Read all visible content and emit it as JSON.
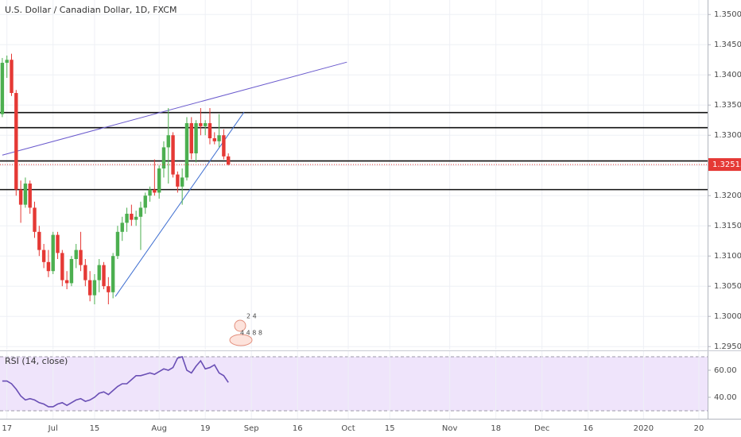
{
  "chart_data": [
    {
      "type": "candlestick",
      "title": "U.S. Dollar / Canadian Dollar, 1D, FXCM",
      "up_color": "#4caf50",
      "down_color": "#e53935",
      "open": [
        1.3335,
        1.342,
        1.3425,
        1.337,
        1.321,
        1.3185,
        1.322,
        1.318,
        1.314,
        1.311,
        1.309,
        1.3075,
        1.3135,
        1.3105,
        1.306,
        1.3055,
        1.3095,
        1.311,
        1.3085,
        1.306,
        1.3035,
        1.306,
        1.3085,
        1.305,
        1.304,
        1.31,
        1.314,
        1.3155,
        1.317,
        1.316,
        1.3165,
        1.318,
        1.32,
        1.321,
        1.3205,
        1.3245,
        1.328,
        1.33,
        1.3235,
        1.3215,
        1.323,
        1.332,
        1.327,
        1.332,
        1.3315,
        1.332,
        1.3295,
        1.329,
        1.33,
        1.3265
      ],
      "high": [
        1.3428,
        1.3432,
        1.3435,
        1.3375,
        1.3225,
        1.323,
        1.3225,
        1.319,
        1.315,
        1.312,
        1.311,
        1.314,
        1.314,
        1.311,
        1.3075,
        1.31,
        1.312,
        1.314,
        1.3095,
        1.3075,
        1.307,
        1.3095,
        1.309,
        1.3065,
        1.3105,
        1.315,
        1.3165,
        1.318,
        1.3185,
        1.3175,
        1.319,
        1.3205,
        1.3215,
        1.326,
        1.325,
        1.329,
        1.3345,
        1.3305,
        1.324,
        1.3245,
        1.333,
        1.333,
        1.3325,
        1.3345,
        1.3325,
        1.3345,
        1.3305,
        1.3335,
        1.331,
        1.327
      ],
      "low": [
        1.333,
        1.3395,
        1.3365,
        1.32,
        1.3155,
        1.318,
        1.317,
        1.313,
        1.31,
        1.308,
        1.3065,
        1.307,
        1.3095,
        1.305,
        1.3045,
        1.305,
        1.308,
        1.3075,
        1.305,
        1.3025,
        1.302,
        1.304,
        1.3045,
        1.302,
        1.303,
        1.3095,
        1.3125,
        1.314,
        1.315,
        1.315,
        1.311,
        1.317,
        1.319,
        1.32,
        1.3195,
        1.323,
        1.322,
        1.323,
        1.3205,
        1.3185,
        1.3225,
        1.326,
        1.3255,
        1.33,
        1.33,
        1.3285,
        1.3285,
        1.328,
        1.326,
        1.325
      ],
      "close": [
        1.342,
        1.3425,
        1.337,
        1.321,
        1.3185,
        1.322,
        1.318,
        1.314,
        1.311,
        1.309,
        1.3075,
        1.3135,
        1.3105,
        1.306,
        1.3055,
        1.3095,
        1.311,
        1.3085,
        1.306,
        1.3035,
        1.306,
        1.3085,
        1.305,
        1.304,
        1.31,
        1.314,
        1.3155,
        1.317,
        1.316,
        1.3165,
        1.318,
        1.32,
        1.321,
        1.3205,
        1.3245,
        1.328,
        1.33,
        1.3235,
        1.3215,
        1.323,
        1.332,
        1.327,
        1.332,
        1.3315,
        1.332,
        1.3295,
        1.329,
        1.33,
        1.3265,
        1.32515
      ],
      "last_price": 1.32515,
      "last_color": "#e53935",
      "levels": [
        1.33375,
        1.33125,
        1.32575,
        1.321
      ],
      "level_color": "#111111",
      "trendlines": [
        {
          "x": [
            0,
            74.7
          ],
          "y": [
            1.32671,
            1.34211
          ],
          "color": "#6a5acd"
        },
        {
          "x": [
            24.5,
            52.4
          ],
          "y": [
            1.30329,
            1.33382
          ],
          "color": "#3f6fd1"
        }
      ],
      "ylim": [
        1.2945,
        1.3524
      ],
      "yticks": [
        {
          "value": 1.35,
          "label": "1.35000"
        },
        {
          "value": 1.345,
          "label": "1.34500"
        },
        {
          "value": 1.34,
          "label": "1.34000"
        },
        {
          "value": 1.335,
          "label": "1.33500"
        },
        {
          "value": 1.33,
          "label": "1.33000"
        },
        {
          "value": 1.325,
          "label": "1.32500"
        },
        {
          "value": 1.32,
          "label": "1.32000"
        },
        {
          "value": 1.315,
          "label": "1.31500"
        },
        {
          "value": 1.31,
          "label": "1.31000"
        },
        {
          "value": 1.305,
          "label": "1.30500"
        },
        {
          "value": 1.3,
          "label": "1.30000"
        },
        {
          "value": 1.295,
          "label": "1.29500"
        }
      ],
      "xlim": [
        -0.5,
        152.9
      ],
      "xticks": [
        {
          "value": 1,
          "label": "17"
        },
        {
          "value": 11,
          "label": "Jul"
        },
        {
          "value": 20,
          "label": "15"
        },
        {
          "value": 34,
          "label": "Aug"
        },
        {
          "value": 44,
          "label": "19"
        },
        {
          "value": 54,
          "label": "Sep"
        },
        {
          "value": 64,
          "label": "16"
        },
        {
          "value": 75,
          "label": "Oct"
        },
        {
          "value": 84,
          "label": "15"
        },
        {
          "value": 97,
          "label": "Nov"
        },
        {
          "value": 107,
          "label": "18"
        },
        {
          "value": 117,
          "label": "Dec"
        },
        {
          "value": 127,
          "label": "16"
        },
        {
          "value": 139,
          "label": "2020"
        },
        {
          "value": 151,
          "label": "20"
        }
      ],
      "grid": true,
      "event_labels": [
        "2 4",
        "4 4 8 8"
      ]
    },
    {
      "type": "line",
      "title": "RSI (14, close)",
      "color": "#6a4fb5",
      "values": [
        52,
        52,
        50,
        46,
        41,
        38,
        39,
        38,
        36,
        35,
        33,
        33,
        35,
        36,
        34,
        36,
        38,
        39,
        37,
        38,
        40,
        43,
        44,
        42,
        45,
        48,
        50,
        50,
        53,
        56,
        56,
        57,
        58,
        57,
        59,
        61,
        60,
        62,
        69,
        70,
        60,
        58,
        63,
        67,
        61,
        62,
        64,
        58,
        56,
        51
      ],
      "bands": [
        30,
        70
      ],
      "band_fill": "#efe4fb",
      "ylim": [
        25.3,
        74.1
      ],
      "yticks": [
        {
          "value": 60,
          "label": "60.00"
        },
        {
          "value": 40,
          "label": "40.00"
        }
      ]
    }
  ]
}
